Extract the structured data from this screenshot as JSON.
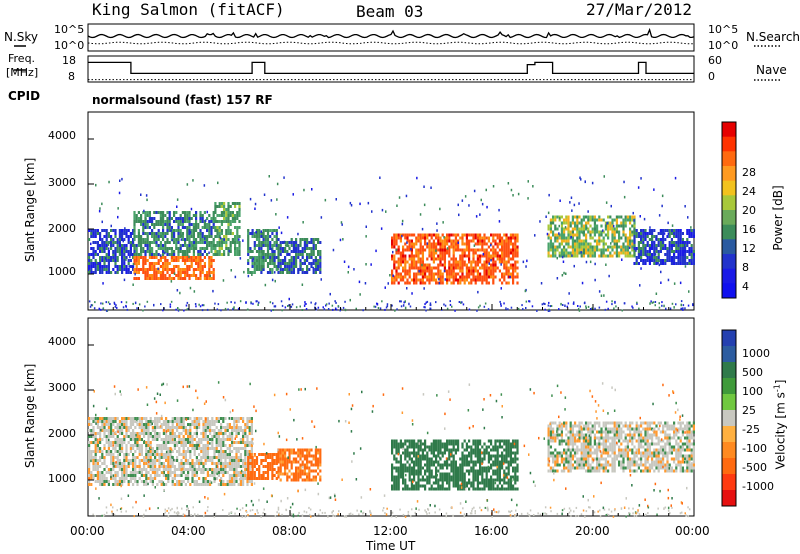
{
  "header": {
    "station": "King Salmon (fitACF)",
    "beam": "Beam 03",
    "date": "27/Mar/2012"
  },
  "noise_panel": {
    "left_label": "N.Sky",
    "left_ticks": [
      "10^5",
      "10^0"
    ],
    "right_label": "N.Search",
    "right_ticks": [
      "10^5",
      "10^0"
    ]
  },
  "freq_panel": {
    "left_label_1": "Freq.",
    "left_label_2": "[MHz]",
    "left_ticks": [
      "18",
      "8"
    ],
    "right_label": "Nave",
    "right_ticks": [
      "60",
      "0"
    ]
  },
  "cpid_panel": {
    "label": "CPID",
    "mode": "normalsound (fast) 157 RF"
  },
  "x_axis": {
    "label": "Time UT",
    "ticks": [
      "00:00",
      "04:00",
      "08:00",
      "12:00",
      "16:00",
      "20:00",
      "00:00"
    ]
  },
  "power_panel": {
    "ylabel": "Slant Range [km]",
    "yticks": [
      "4000",
      "3000",
      "2000",
      "1000"
    ],
    "colorbar_label": "Power [dB]",
    "colorbar_ticks": [
      "28",
      "24",
      "20",
      "16",
      "12",
      "8",
      "4"
    ]
  },
  "velocity_panel": {
    "ylabel": "Slant Range [km]",
    "yticks": [
      "4000",
      "3000",
      "2000",
      "1000"
    ],
    "colorbar_label": "Velocity [m s",
    "colorbar_label_sup": "-1",
    "colorbar_label_end": "]",
    "colorbar_ticks": [
      "1000",
      "500",
      "100",
      "25",
      "-25",
      "-100",
      "-500",
      "-1000"
    ]
  },
  "chart_data": [
    {
      "type": "line",
      "title": "N.Sky / N.Search",
      "y_scale": "log",
      "ylim": [
        1,
        100000
      ],
      "x_unit": "hour UT",
      "xlim": [
        0,
        24
      ]
    },
    {
      "type": "line",
      "title": "Freq. / Nave",
      "series": [
        {
          "name": "Freq.",
          "x": [
            0,
            1.7,
            1.7,
            6.5,
            6.5,
            7.0,
            7.0,
            17.4,
            17.4,
            17.7,
            17.7,
            18.4,
            18.4,
            21.8,
            21.8,
            22.1,
            22.1,
            24
          ],
          "y": [
            16,
            16,
            11,
            11,
            16,
            16,
            11,
            11,
            15,
            15,
            16,
            16,
            11,
            11,
            16,
            16,
            11,
            11
          ]
        },
        {
          "name": "Nave",
          "x": [
            0,
            24
          ],
          "y": [
            1,
            1
          ]
        }
      ],
      "ylim_left": [
        8,
        18
      ],
      "ylim_right": [
        0,
        60
      ]
    },
    {
      "type": "heatmap",
      "title": "Power [dB]",
      "x_unit": "hour UT",
      "y_unit": "slant range km",
      "xlim": [
        0,
        24
      ],
      "ylim": [
        200,
        4600
      ],
      "color_scale": [
        0,
        30
      ],
      "features": [
        {
          "t0": 0.0,
          "t1": 1.8,
          "r0": 1000,
          "r1": 2000,
          "power": 8
        },
        {
          "t0": 1.8,
          "t1": 5.0,
          "r0": 900,
          "r1": 1400,
          "power": 26
        },
        {
          "t0": 1.8,
          "t1": 5.0,
          "r0": 1400,
          "r1": 2400,
          "power": 12
        },
        {
          "t0": 5.0,
          "t1": 6.0,
          "r0": 1400,
          "r1": 2600,
          "power": 14
        },
        {
          "t0": 6.3,
          "t1": 7.5,
          "r0": 1000,
          "r1": 2000,
          "power": 12
        },
        {
          "t0": 7.5,
          "t1": 9.2,
          "r0": 1000,
          "r1": 1800,
          "power": 10
        },
        {
          "t0": 12.0,
          "t1": 17.0,
          "r0": 800,
          "r1": 1900,
          "power": 27
        },
        {
          "t0": 18.2,
          "t1": 21.6,
          "r0": 1400,
          "r1": 2300,
          "power": 17
        },
        {
          "t0": 21.6,
          "t1": 24.0,
          "r0": 1200,
          "r1": 2000,
          "power": 8
        }
      ]
    },
    {
      "type": "heatmap",
      "title": "Velocity",
      "x_unit": "hour UT",
      "y_unit": "slant range km",
      "xlim": [
        0,
        24
      ],
      "ylim": [
        200,
        4600
      ],
      "color_scale": [
        -1000,
        1000
      ],
      "features": [
        {
          "t0": 0.0,
          "t1": 6.5,
          "r0": 900,
          "r1": 2400,
          "velocity": 0
        },
        {
          "t0": 6.3,
          "t1": 7.5,
          "r0": 1000,
          "r1": 1600,
          "velocity": -150
        },
        {
          "t0": 7.5,
          "t1": 9.2,
          "r0": 1000,
          "r1": 1700,
          "velocity": -120
        },
        {
          "t0": 12.0,
          "t1": 17.0,
          "r0": 800,
          "r1": 1900,
          "velocity": 300
        },
        {
          "t0": 18.2,
          "t1": 24.0,
          "r0": 1200,
          "r1": 2300,
          "velocity": 0
        }
      ]
    }
  ]
}
